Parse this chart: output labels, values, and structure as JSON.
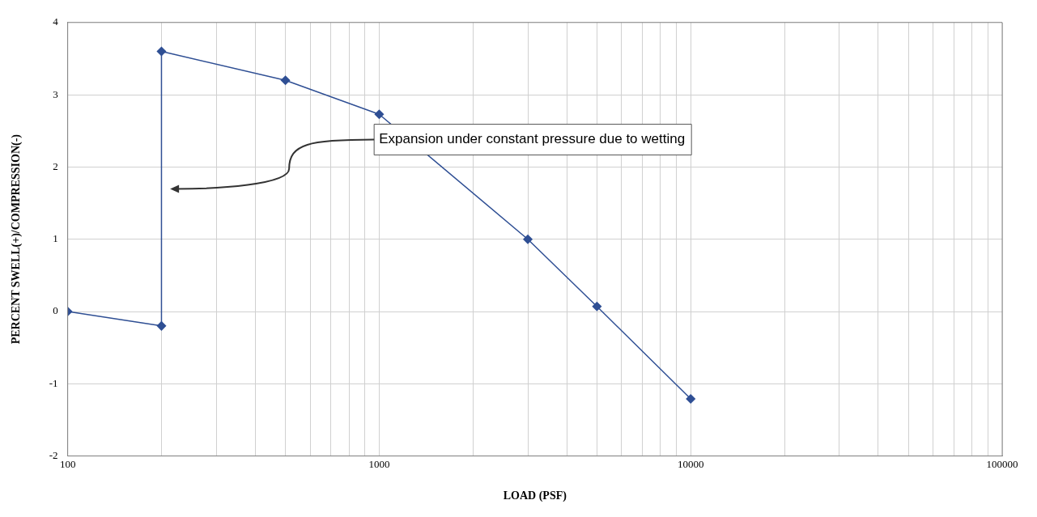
{
  "chart_data": {
    "type": "line",
    "xlabel": "LOAD (PSF)",
    "ylabel": "PERCENT SWELL(+)/COMPRESSION(-)",
    "log": "x",
    "x": [
      100,
      200,
      200,
      500,
      1000,
      3000,
      5000,
      10000
    ],
    "series": [
      {
        "color": "#2f4f94",
        "values": [
          0,
          -0.2,
          3.6,
          3.2,
          2.73,
          1.0,
          0.07,
          -1.21
        ]
      }
    ],
    "xlim": [
      100,
      100000
    ],
    "xticks": [
      100,
      {
        "value": 200,
        "label": null
      },
      {
        "value": 300,
        "label": null
      },
      {
        "value": 400,
        "label": null
      },
      {
        "value": 500,
        "label": null
      },
      {
        "value": 600,
        "label": null
      },
      {
        "value": 700,
        "label": null
      },
      {
        "value": 800,
        "label": null
      },
      {
        "value": 900,
        "label": null
      },
      1000,
      {
        "value": 2000,
        "label": null
      },
      {
        "value": 3000,
        "label": null
      },
      {
        "value": 4000,
        "label": null
      },
      {
        "value": 5000,
        "label": null
      },
      {
        "value": 6000,
        "label": null
      },
      {
        "value": 7000,
        "label": null
      },
      {
        "value": 8000,
        "label": null
      },
      {
        "value": 9000,
        "label": null
      },
      10000,
      {
        "value": 20000,
        "label": null
      },
      {
        "value": 30000,
        "label": null
      },
      {
        "value": 40000,
        "label": null
      },
      {
        "value": 50000,
        "label": null
      },
      {
        "value": 60000,
        "label": null
      },
      {
        "value": 70000,
        "label": null
      },
      {
        "value": 80000,
        "label": null
      },
      {
        "value": 90000,
        "label": null
      },
      100000
    ],
    "ylim": [
      -2,
      4
    ],
    "yticks": [
      -2,
      -1,
      0,
      1,
      2,
      3,
      4
    ],
    "grid": true,
    "legend": false,
    "marker": "diamond",
    "line_style": "solid",
    "annotations": [
      "Expansion under constant pressure due to wetting"
    ]
  }
}
